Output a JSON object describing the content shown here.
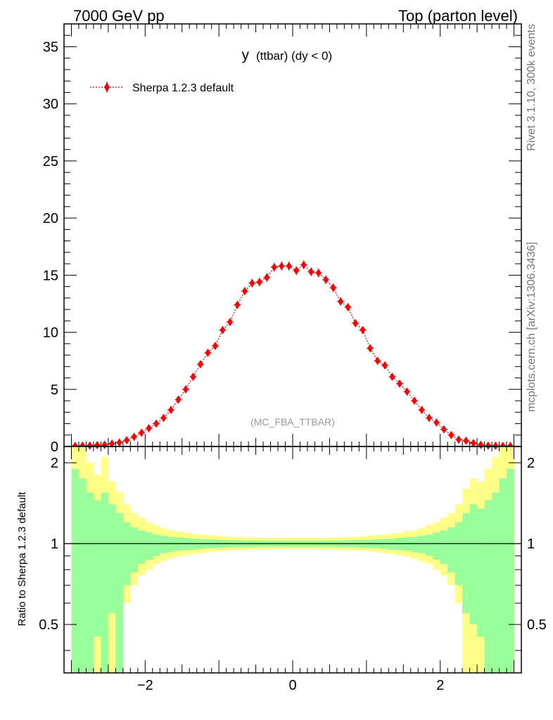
{
  "header": {
    "left": "7000 GeV pp",
    "right": "Top (parton level)"
  },
  "side_labels": {
    "rivet": "Rivet 3.1.10,  300k events",
    "mcplots": "mcplots.cern.ch [arXiv:1306.3436]"
  },
  "colors": {
    "series": "#ff0000",
    "band_inner": "#99ff99",
    "band_outer": "#ffff88",
    "frame": "#000000",
    "watermark": "#999999"
  },
  "chart_data": [
    {
      "type": "scatter",
      "title_main": "y",
      "title_rest": "(ttbar) (dy < 0)",
      "watermark": "(MC_FBA_TTBAR)",
      "xlabel": "",
      "ylabel": "",
      "xlim": [
        -3.1,
        3.1
      ],
      "ylim": [
        0,
        37
      ],
      "yticks": [
        0,
        5,
        10,
        15,
        20,
        25,
        30,
        35
      ],
      "legend": {
        "label": "Sherpa 1.2.3 default",
        "position": "top-left"
      },
      "series": [
        {
          "name": "Sherpa 1.2.3 default",
          "marker": "diamond",
          "line": "dotted",
          "x": [
            -2.95,
            -2.85,
            -2.75,
            -2.65,
            -2.55,
            -2.45,
            -2.35,
            -2.25,
            -2.15,
            -2.05,
            -1.95,
            -1.85,
            -1.75,
            -1.65,
            -1.55,
            -1.45,
            -1.35,
            -1.25,
            -1.15,
            -1.05,
            -0.95,
            -0.85,
            -0.75,
            -0.65,
            -0.55,
            -0.45,
            -0.35,
            -0.25,
            -0.15,
            -0.05,
            0.05,
            0.15,
            0.25,
            0.35,
            0.45,
            0.55,
            0.65,
            0.75,
            0.85,
            0.95,
            1.05,
            1.15,
            1.25,
            1.35,
            1.45,
            1.55,
            1.65,
            1.75,
            1.85,
            1.95,
            2.05,
            2.15,
            2.25,
            2.35,
            2.45,
            2.55,
            2.65,
            2.75,
            2.85,
            2.95
          ],
          "y": [
            0.05,
            0.07,
            0.08,
            0.12,
            0.15,
            0.25,
            0.35,
            0.55,
            0.85,
            1.2,
            1.6,
            2.0,
            2.5,
            3.2,
            4.1,
            5.0,
            6.1,
            7.2,
            8.2,
            8.8,
            10.2,
            10.9,
            12.4,
            13.6,
            14.3,
            14.4,
            14.8,
            15.7,
            15.8,
            15.8,
            15.4,
            15.9,
            15.3,
            15.2,
            14.6,
            13.9,
            12.7,
            12.2,
            10.8,
            10.2,
            8.6,
            7.5,
            7.1,
            6.1,
            5.5,
            4.8,
            4.0,
            3.2,
            2.5,
            2.1,
            1.5,
            1.0,
            0.6,
            0.5,
            0.3,
            0.15,
            0.08,
            0.06,
            0.05,
            0.05
          ],
          "yerr": [
            0.05,
            0.05,
            0.05,
            0.06,
            0.07,
            0.08,
            0.09,
            0.1,
            0.12,
            0.14,
            0.16,
            0.17,
            0.19,
            0.21,
            0.23,
            0.25,
            0.27,
            0.28,
            0.3,
            0.31,
            0.33,
            0.34,
            0.35,
            0.36,
            0.37,
            0.37,
            0.38,
            0.39,
            0.39,
            0.39,
            0.39,
            0.39,
            0.38,
            0.38,
            0.37,
            0.37,
            0.36,
            0.35,
            0.34,
            0.33,
            0.31,
            0.3,
            0.29,
            0.27,
            0.26,
            0.24,
            0.22,
            0.2,
            0.17,
            0.16,
            0.13,
            0.11,
            0.09,
            0.08,
            0.07,
            0.06,
            0.05,
            0.05,
            0.05,
            0.05
          ]
        }
      ]
    },
    {
      "type": "area",
      "xlabel": "",
      "ylabel": "Ratio to Sherpa 1.2.3 default",
      "xlim": [
        -3.1,
        3.1
      ],
      "ylim": [
        0.33,
        2.3
      ],
      "log_y": true,
      "yticks": [
        0.5,
        1,
        2
      ],
      "xticks": [
        -2,
        0,
        2
      ],
      "reference": 1,
      "bin_edges": [
        -3.0,
        -2.9,
        -2.8,
        -2.7,
        -2.6,
        -2.5,
        -2.4,
        -2.3,
        -2.2,
        -2.1,
        -2.0,
        -1.9,
        -1.8,
        -1.7,
        -1.6,
        -1.5,
        -1.4,
        -1.3,
        -1.2,
        -1.1,
        -1.0,
        -0.9,
        -0.8,
        -0.7,
        -0.6,
        -0.5,
        -0.4,
        -0.3,
        -0.2,
        -0.1,
        0.0,
        0.1,
        0.2,
        0.3,
        0.4,
        0.5,
        0.6,
        0.7,
        0.8,
        0.9,
        1.0,
        1.1,
        1.2,
        1.3,
        1.4,
        1.5,
        1.6,
        1.7,
        1.8,
        1.9,
        2.0,
        2.1,
        2.2,
        2.3,
        2.4,
        2.5,
        2.6,
        2.7,
        2.8,
        2.9,
        3.0
      ],
      "bands": [
        {
          "name": "inner",
          "color": "#99ff99",
          "upper": [
            1.9,
            1.75,
            1.55,
            1.45,
            1.55,
            1.4,
            1.3,
            1.2,
            1.15,
            1.12,
            1.1,
            1.08,
            1.07,
            1.06,
            1.055,
            1.05,
            1.045,
            1.04,
            1.038,
            1.035,
            1.032,
            1.03,
            1.03,
            1.028,
            1.027,
            1.026,
            1.025,
            1.025,
            1.025,
            1.025,
            1.025,
            1.025,
            1.025,
            1.025,
            1.026,
            1.027,
            1.028,
            1.03,
            1.03,
            1.032,
            1.035,
            1.038,
            1.04,
            1.045,
            1.05,
            1.055,
            1.06,
            1.07,
            1.08,
            1.1,
            1.12,
            1.15,
            1.2,
            1.3,
            1.4,
            1.35,
            1.45,
            1.55,
            1.75,
            1.9
          ],
          "lower": [
            0.33,
            0.33,
            0.33,
            0.45,
            0.33,
            0.55,
            0.33,
            0.7,
            0.78,
            0.84,
            0.87,
            0.9,
            0.92,
            0.93,
            0.94,
            0.945,
            0.95,
            0.955,
            0.96,
            0.962,
            0.965,
            0.968,
            0.97,
            0.972,
            0.973,
            0.974,
            0.975,
            0.975,
            0.975,
            0.975,
            0.975,
            0.975,
            0.975,
            0.975,
            0.974,
            0.973,
            0.972,
            0.97,
            0.968,
            0.965,
            0.962,
            0.96,
            0.955,
            0.95,
            0.945,
            0.94,
            0.93,
            0.92,
            0.9,
            0.87,
            0.84,
            0.78,
            0.7,
            0.55,
            0.5,
            0.45,
            0.33,
            0.33,
            0.33,
            0.33
          ]
        },
        {
          "name": "outer",
          "color": "#ffff88",
          "upper": [
            2.3,
            2.3,
            2.0,
            1.8,
            2.1,
            1.7,
            1.55,
            1.4,
            1.3,
            1.25,
            1.2,
            1.17,
            1.14,
            1.12,
            1.11,
            1.1,
            1.09,
            1.08,
            1.075,
            1.07,
            1.065,
            1.06,
            1.058,
            1.055,
            1.053,
            1.052,
            1.05,
            1.05,
            1.05,
            1.05,
            1.05,
            1.05,
            1.05,
            1.05,
            1.052,
            1.053,
            1.055,
            1.058,
            1.06,
            1.065,
            1.07,
            1.075,
            1.08,
            1.09,
            1.1,
            1.11,
            1.12,
            1.14,
            1.17,
            1.2,
            1.25,
            1.3,
            1.4,
            1.6,
            1.75,
            1.7,
            1.9,
            2.1,
            2.3,
            2.3
          ],
          "lower": [
            0.33,
            0.33,
            0.33,
            0.33,
            0.33,
            0.33,
            0.33,
            0.6,
            0.7,
            0.76,
            0.8,
            0.84,
            0.86,
            0.88,
            0.895,
            0.905,
            0.915,
            0.92,
            0.93,
            0.935,
            0.94,
            0.943,
            0.946,
            0.948,
            0.95,
            0.952,
            0.953,
            0.954,
            0.955,
            0.955,
            0.955,
            0.955,
            0.954,
            0.953,
            0.952,
            0.95,
            0.948,
            0.946,
            0.943,
            0.94,
            0.935,
            0.93,
            0.92,
            0.915,
            0.905,
            0.895,
            0.88,
            0.86,
            0.84,
            0.8,
            0.76,
            0.7,
            0.6,
            0.33,
            0.33,
            0.33,
            0.33,
            0.33,
            0.33,
            0.33
          ]
        }
      ]
    }
  ]
}
